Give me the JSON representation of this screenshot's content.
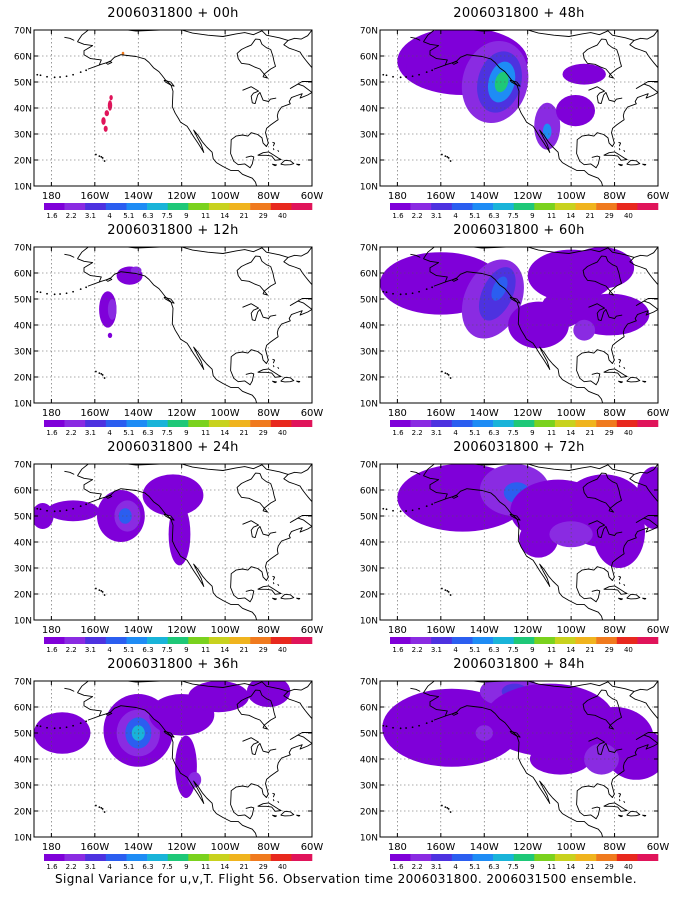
{
  "colorbar": {
    "levels": [
      "1.6",
      "2.2",
      "3.1",
      "4",
      "5.1",
      "6.3",
      "7.5",
      "9",
      "11",
      "14",
      "21",
      "29",
      "40"
    ],
    "colors": [
      "#7f00d9",
      "#8a2be2",
      "#4d32e0",
      "#2b5ef0",
      "#1e8cf5",
      "#19b4d9",
      "#1ec878",
      "#7ad21e",
      "#c8d21e",
      "#f0b41e",
      "#f07a1e",
      "#e8281e",
      "#e0145a"
    ]
  },
  "lat_labels": [
    "70N",
    "60N",
    "50N",
    "40N",
    "30N",
    "20N",
    "10N"
  ],
  "lon_labels": [
    "180",
    "160W",
    "140W",
    "120W",
    "100W",
    "80W",
    "60W"
  ],
  "panels": [
    {
      "id": "p00",
      "title": "2006031800 + 00h"
    },
    {
      "id": "p48",
      "title": "2006031800 + 48h"
    },
    {
      "id": "p12",
      "title": "2006031800 + 12h"
    },
    {
      "id": "p60",
      "title": "2006031800 + 60h"
    },
    {
      "id": "p24",
      "title": "2006031800 + 24h"
    },
    {
      "id": "p72",
      "title": "2006031800 + 72h"
    },
    {
      "id": "p36",
      "title": "2006031800 + 36h"
    },
    {
      "id": "p84",
      "title": "2006031800 + 84h"
    }
  ],
  "caption": "Signal Variance for u,v,T. Flight 56. Observation time 2006031800. 2006031500 ensemble."
}
